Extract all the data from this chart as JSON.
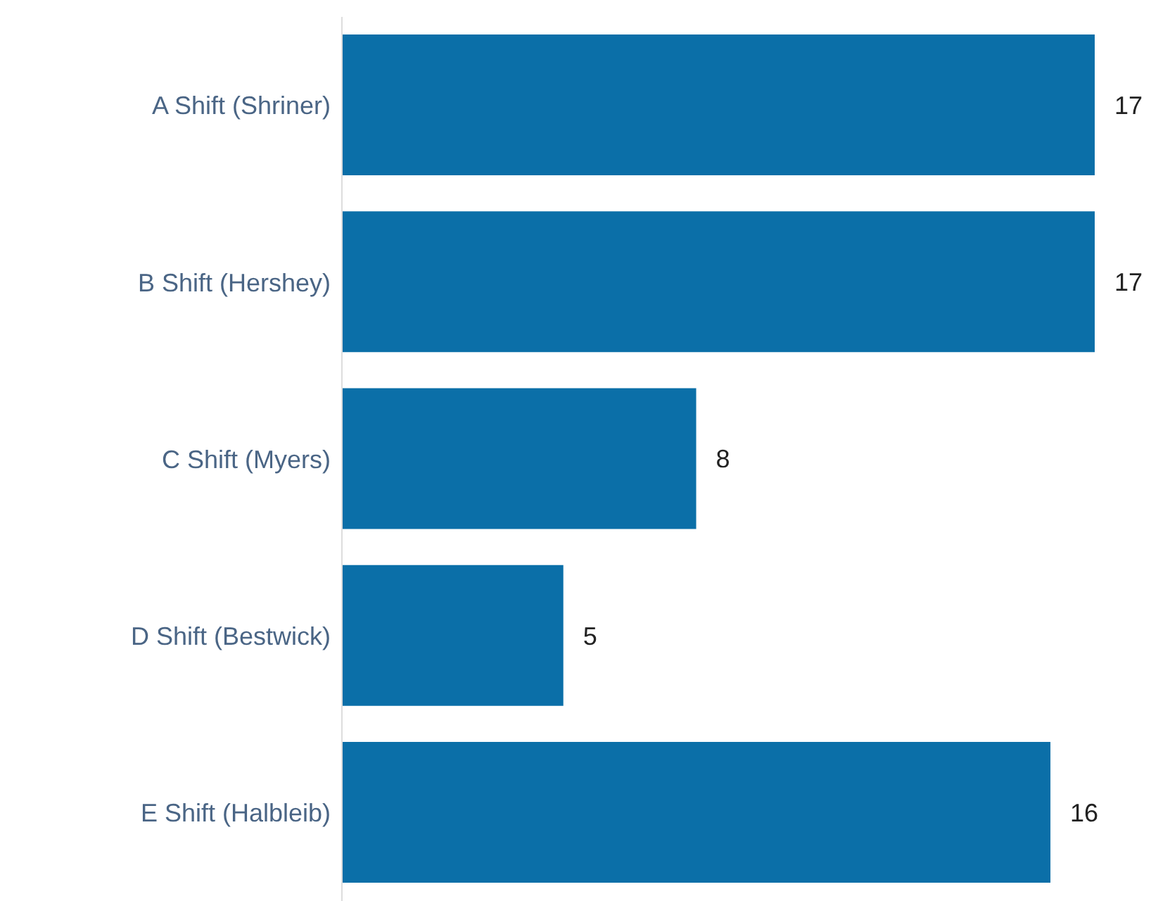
{
  "chart_data": {
    "type": "bar",
    "orientation": "horizontal",
    "categories": [
      "A Shift (Shriner)",
      "B Shift (Hershey)",
      "C Shift (Myers)",
      "D Shift (Bestwick)",
      "E Shift (Halbleib)"
    ],
    "values": [
      17,
      17,
      8,
      5,
      16
    ],
    "color": "#0b6fa8",
    "data_labels": true
  }
}
